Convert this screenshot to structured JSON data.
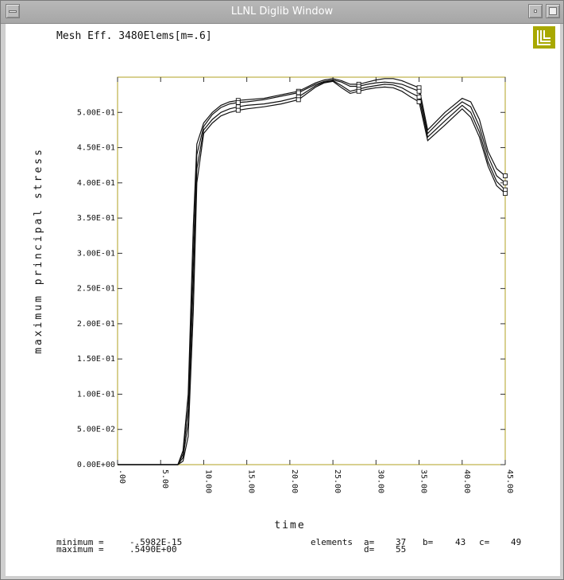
{
  "window": {
    "title": "LLNL Diglib Window"
  },
  "logo": {
    "color": "#a8a800"
  },
  "plot": {
    "heading": "Mesh Eff. 3480Elems[m=.6]",
    "frame_color": "#b0a020",
    "minimum_label": "minimum =",
    "minimum_value": "-.5982E-15",
    "maximum_label": "maximum =",
    "maximum_value": ".5490E+00",
    "elements_label": "elements",
    "elements": [
      {
        "label": "a=",
        "value": "37"
      },
      {
        "label": "b=",
        "value": "43"
      },
      {
        "label": "c=",
        "value": "49"
      },
      {
        "label": "d=",
        "value": "55"
      }
    ]
  },
  "chart_data": {
    "type": "line",
    "xlabel": "time",
    "ylabel": "maximum principal stress",
    "xlim": [
      0,
      45
    ],
    "ylim": [
      0,
      0.55
    ],
    "xticks": [
      ".00",
      "5.00",
      "10.00",
      "15.00",
      "20.00",
      "25.00",
      "30.00",
      "35.00",
      "40.00",
      "45.00"
    ],
    "yticks": [
      "0.00E+00",
      "5.00E-02",
      "1.00E-01",
      "1.50E-01",
      "2.00E-01",
      "2.50E-01",
      "3.00E-01",
      "3.50E-01",
      "4.00E-01",
      "4.50E-01",
      "5.00E-01"
    ],
    "grid": false,
    "series": [
      {
        "name": "a",
        "x": [
          0,
          7,
          7.6,
          8.2,
          8.8,
          9.2,
          10,
          11,
          12,
          13,
          14,
          15,
          17,
          19,
          21,
          22,
          23,
          24,
          25,
          26,
          27,
          28,
          29,
          30,
          31,
          32,
          33,
          34,
          35,
          36,
          38,
          40,
          41,
          42,
          43,
          44,
          45
        ],
        "y": [
          0,
          0,
          0.02,
          0.1,
          0.34,
          0.455,
          0.485,
          0.5,
          0.51,
          0.515,
          0.517,
          0.518,
          0.52,
          0.525,
          0.53,
          0.536,
          0.542,
          0.546,
          0.548,
          0.545,
          0.54,
          0.54,
          0.543,
          0.546,
          0.548,
          0.548,
          0.545,
          0.54,
          0.535,
          0.475,
          0.5,
          0.52,
          0.515,
          0.49,
          0.445,
          0.42,
          0.41
        ]
      },
      {
        "name": "b",
        "x": [
          0,
          7,
          7.6,
          8.2,
          8.8,
          9.2,
          10,
          11,
          12,
          13,
          14,
          15,
          17,
          19,
          21,
          22,
          23,
          24,
          25,
          26,
          27,
          28,
          29,
          30,
          31,
          32,
          33,
          34,
          35,
          36,
          38,
          40,
          41,
          42,
          43,
          44,
          45
        ],
        "y": [
          0,
          0,
          0.015,
          0.08,
          0.3,
          0.44,
          0.48,
          0.497,
          0.507,
          0.512,
          0.514,
          0.515,
          0.518,
          0.523,
          0.528,
          0.534,
          0.54,
          0.544,
          0.546,
          0.543,
          0.537,
          0.537,
          0.54,
          0.542,
          0.543,
          0.542,
          0.54,
          0.535,
          0.53,
          0.47,
          0.495,
          0.515,
          0.508,
          0.48,
          0.438,
          0.41,
          0.4
        ]
      },
      {
        "name": "c",
        "x": [
          0,
          7,
          7.6,
          8.2,
          8.8,
          9.2,
          10,
          11,
          12,
          13,
          14,
          15,
          17,
          19,
          21,
          22,
          23,
          24,
          25,
          26,
          27,
          28,
          29,
          30,
          31,
          32,
          33,
          34,
          35,
          36,
          38,
          40,
          41,
          42,
          43,
          44,
          45
        ],
        "y": [
          0,
          0,
          0.01,
          0.06,
          0.26,
          0.42,
          0.475,
          0.49,
          0.5,
          0.505,
          0.508,
          0.51,
          0.512,
          0.516,
          0.522,
          0.53,
          0.538,
          0.543,
          0.545,
          0.538,
          0.53,
          0.533,
          0.536,
          0.538,
          0.54,
          0.539,
          0.535,
          0.528,
          0.522,
          0.465,
          0.488,
          0.51,
          0.5,
          0.472,
          0.43,
          0.402,
          0.39
        ]
      },
      {
        "name": "d",
        "x": [
          0,
          7,
          7.6,
          8.2,
          8.8,
          9.2,
          10,
          11,
          12,
          13,
          14,
          15,
          17,
          19,
          21,
          22,
          23,
          24,
          25,
          26,
          27,
          28,
          29,
          30,
          31,
          32,
          33,
          34,
          35,
          36,
          38,
          40,
          41,
          42,
          43,
          44,
          45
        ],
        "y": [
          0,
          0,
          0.005,
          0.04,
          0.22,
          0.4,
          0.47,
          0.485,
          0.495,
          0.5,
          0.503,
          0.505,
          0.508,
          0.512,
          0.518,
          0.527,
          0.536,
          0.542,
          0.544,
          0.535,
          0.527,
          0.53,
          0.533,
          0.535,
          0.536,
          0.535,
          0.53,
          0.522,
          0.515,
          0.46,
          0.482,
          0.505,
          0.493,
          0.465,
          0.424,
          0.396,
          0.385
        ]
      }
    ]
  }
}
